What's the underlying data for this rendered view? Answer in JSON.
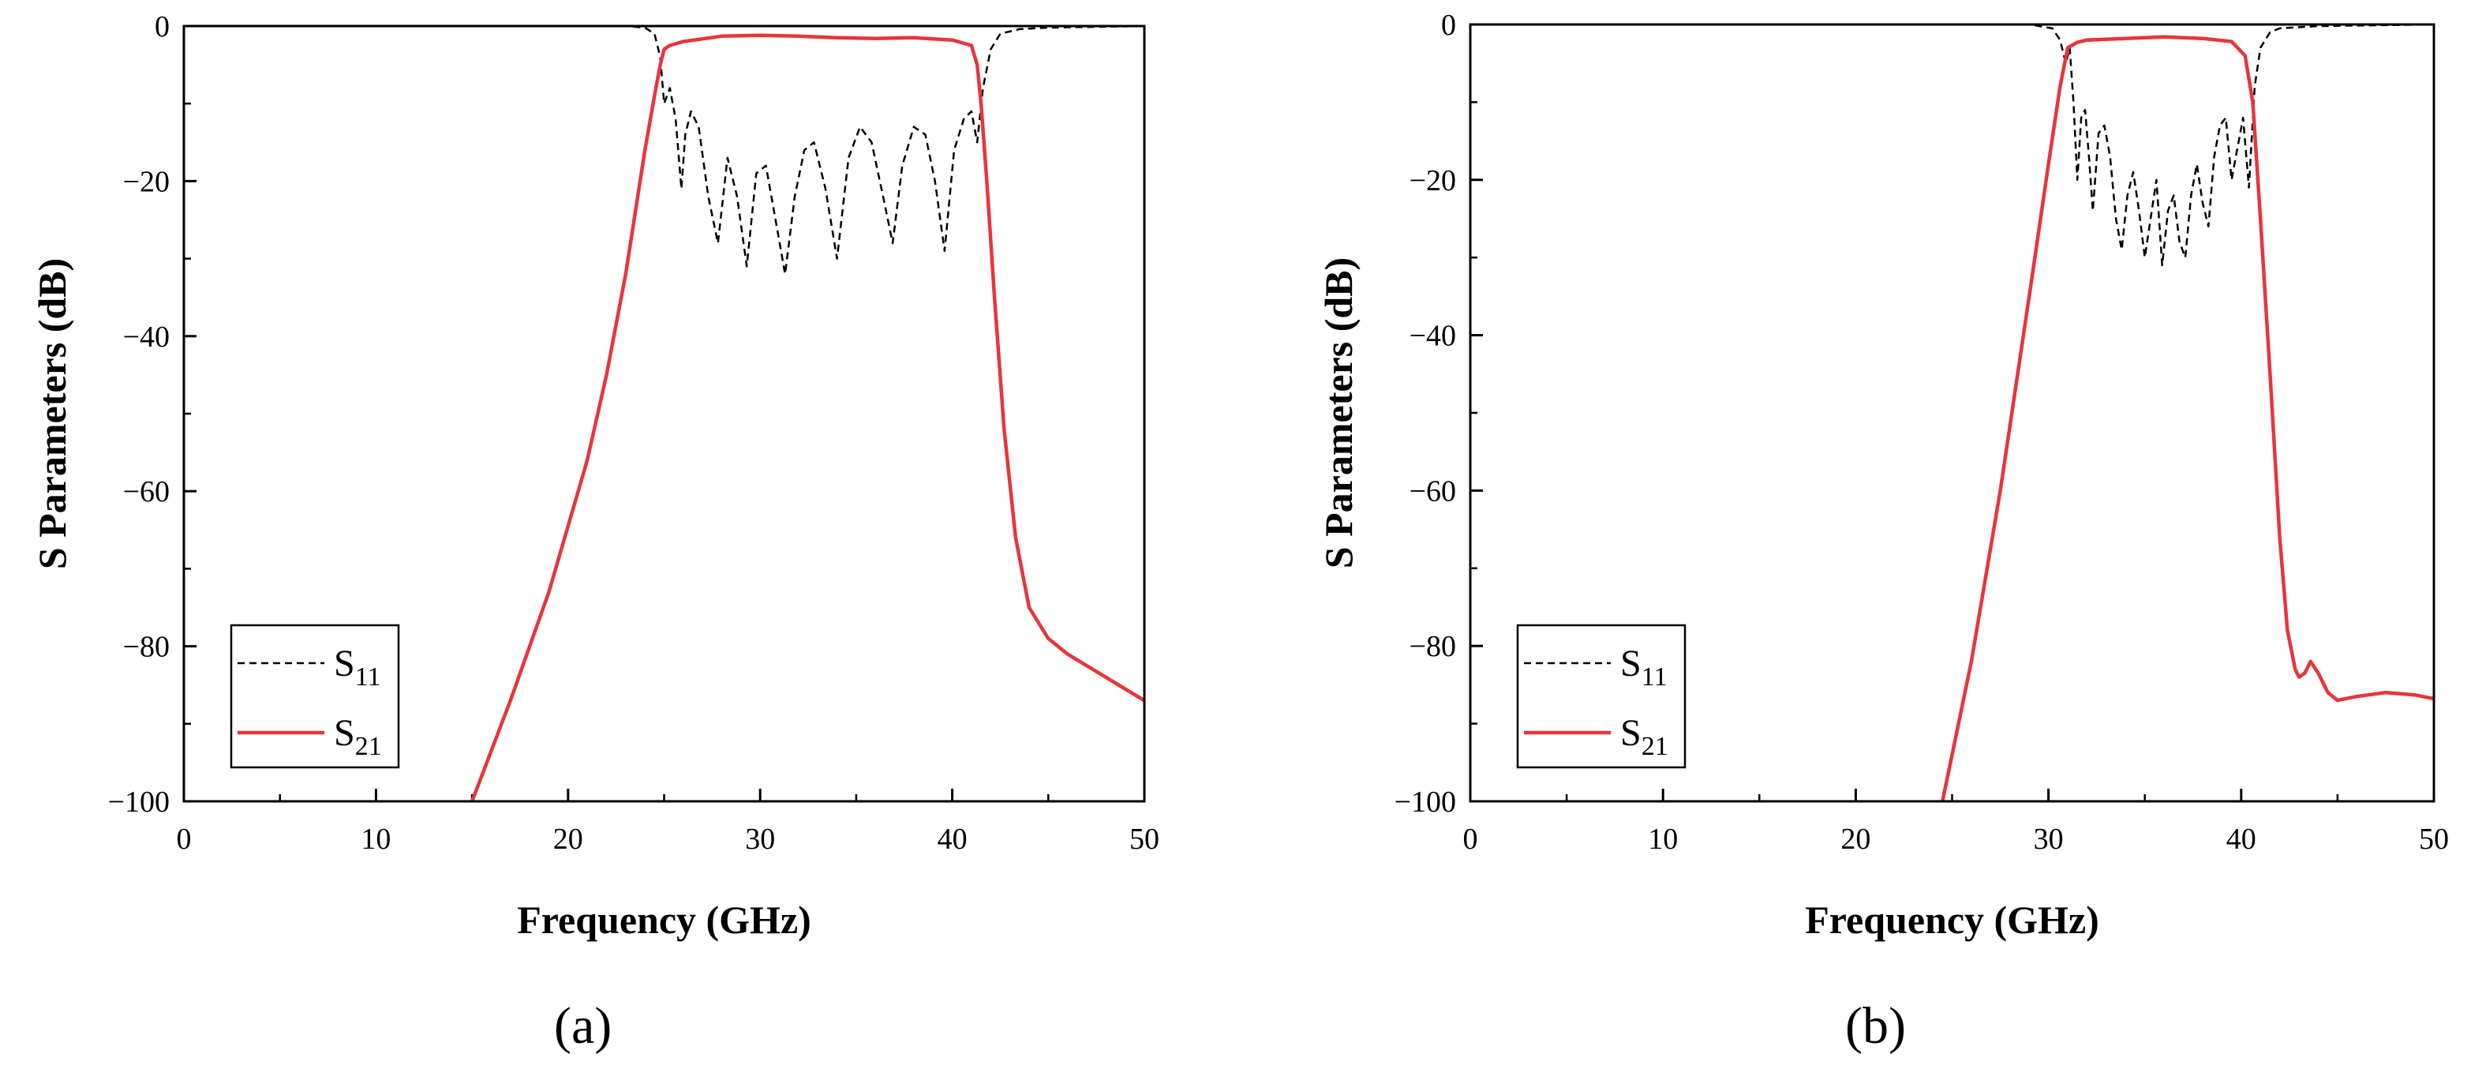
{
  "figure": {
    "panel_labels": [
      "(a)",
      "(b)"
    ],
    "colors": {
      "s11": "#000000",
      "s21": "#e8353a"
    }
  },
  "chart_data": [
    {
      "type": "line",
      "panel": "(a)",
      "xlabel": "Frequency (GHz)",
      "ylabel": "S Parameters (dB)",
      "xlim": [
        0,
        50
      ],
      "ylim": [
        -100,
        0
      ],
      "xticks": [
        0,
        10,
        20,
        30,
        40,
        50
      ],
      "yticks": [
        0,
        -20,
        -40,
        -60,
        -80,
        -100
      ],
      "ytick_labels": [
        "0",
        "−20",
        "−40",
        "−60",
        "−80",
        "−100"
      ],
      "legend": {
        "position": "bottom-left",
        "entries": [
          {
            "base": "S",
            "sub": "11",
            "style": "dashed"
          },
          {
            "base": "S",
            "sub": "21",
            "style": "solid"
          }
        ]
      },
      "series": [
        {
          "name": "S11",
          "x": [
            16,
            20,
            23,
            24,
            24.5,
            24.8,
            25,
            25.3,
            25.6,
            25.9,
            26.1,
            26.4,
            26.8,
            27.3,
            27.8,
            28.3,
            28.8,
            29.3,
            29.8,
            30.3,
            30.8,
            31.3,
            31.8,
            32.3,
            32.8,
            33.4,
            34.0,
            34.6,
            35.2,
            35.8,
            36.4,
            36.9,
            37.4,
            38.0,
            38.6,
            39.1,
            39.6,
            40.1,
            40.6,
            41.0,
            41.3,
            41.6,
            42.0,
            42.5,
            43.5,
            45,
            50
          ],
          "y": [
            0,
            0,
            0,
            -0.2,
            -1,
            -4,
            -10,
            -8,
            -12,
            -21,
            -14,
            -11,
            -13,
            -22,
            -28,
            -17,
            -22,
            -31,
            -19,
            -18,
            -25,
            -32,
            -22,
            -16,
            -15,
            -21,
            -30,
            -17,
            -13,
            -15,
            -22,
            -28,
            -18,
            -13,
            -14,
            -20,
            -29,
            -16,
            -12,
            -11,
            -15,
            -8,
            -3,
            -1,
            -0.4,
            -0.2,
            0
          ]
        },
        {
          "name": "S21",
          "x": [
            15,
            17,
            19,
            21,
            22,
            23,
            23.5,
            24,
            24.5,
            24.8,
            25.0,
            25.3,
            26,
            28,
            30,
            32,
            34,
            36,
            38,
            40,
            41,
            41.3,
            41.5,
            41.8,
            42.2,
            42.7,
            43.3,
            44,
            45,
            46,
            48,
            50
          ],
          "y": [
            -100,
            -87,
            -73,
            -56,
            -45,
            -32,
            -24,
            -16,
            -9,
            -5,
            -3,
            -2.5,
            -2,
            -1.3,
            -1.2,
            -1.3,
            -1.5,
            -1.6,
            -1.5,
            -1.8,
            -2.5,
            -5,
            -10,
            -20,
            -35,
            -52,
            -66,
            -75,
            -79,
            -81,
            -84,
            -87
          ]
        }
      ]
    },
    {
      "type": "line",
      "panel": "(b)",
      "xlabel": "Frequency (GHz)",
      "ylabel": "S Parameters (dB)",
      "xlim": [
        0,
        50
      ],
      "ylim": [
        -100,
        0
      ],
      "xticks": [
        0,
        10,
        20,
        30,
        40,
        50
      ],
      "yticks": [
        0,
        -20,
        -40,
        -60,
        -80,
        -100
      ],
      "ytick_labels": [
        "0",
        "−20",
        "−40",
        "−60",
        "−80",
        "−100"
      ],
      "legend": {
        "position": "bottom-left",
        "entries": [
          {
            "base": "S",
            "sub": "11",
            "style": "dashed"
          },
          {
            "base": "S",
            "sub": "21",
            "style": "solid"
          }
        ]
      },
      "series": [
        {
          "name": "S11",
          "x": [
            25,
            29,
            30.2,
            30.6,
            30.9,
            31.1,
            31.3,
            31.5,
            31.7,
            31.9,
            32.1,
            32.3,
            32.6,
            32.9,
            33.2,
            33.5,
            33.8,
            34.1,
            34.4,
            34.7,
            35.0,
            35.3,
            35.6,
            35.9,
            36.2,
            36.5,
            36.8,
            37.1,
            37.4,
            37.7,
            38.0,
            38.3,
            38.6,
            38.9,
            39.2,
            39.5,
            39.8,
            40.1,
            40.4,
            40.7,
            41.0,
            41.5,
            42,
            44,
            50
          ],
          "y": [
            0,
            0,
            -0.5,
            -2,
            -5,
            -3,
            -10,
            -20,
            -12,
            -11,
            -17,
            -24,
            -14,
            -13,
            -17,
            -25,
            -29,
            -22,
            -19,
            -24,
            -30,
            -25,
            -20,
            -31,
            -24,
            -22,
            -28,
            -30,
            -22,
            -18,
            -23,
            -26,
            -17,
            -13,
            -12,
            -20,
            -16,
            -12,
            -21,
            -8,
            -3,
            -1,
            -0.5,
            -0.2,
            0
          ]
        },
        {
          "name": "S21",
          "x": [
            24.5,
            26,
            27.5,
            29,
            30,
            30.6,
            31.0,
            31.5,
            32,
            34,
            36,
            38,
            39.5,
            40.2,
            40.6,
            41.0,
            41.5,
            42.0,
            42.4,
            42.8,
            43.0,
            43.3,
            43.6,
            44,
            44.5,
            45,
            46,
            47.5,
            49,
            50
          ],
          "y": [
            -100,
            -82,
            -60,
            -35,
            -18,
            -8,
            -3,
            -2.3,
            -2,
            -1.8,
            -1.6,
            -1.8,
            -2.2,
            -4,
            -10,
            -25,
            -45,
            -66,
            -78,
            -83,
            -84,
            -83.5,
            -82,
            -83.5,
            -86,
            -87,
            -86.5,
            -86,
            -86.3,
            -86.8
          ]
        }
      ]
    }
  ]
}
